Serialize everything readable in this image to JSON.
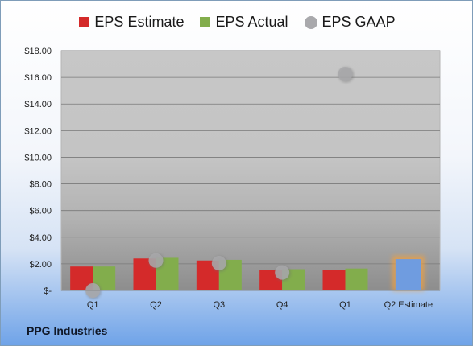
{
  "company": "PPG Industries",
  "colors": {
    "estimate": "#d42a2a",
    "actual": "#82ad4c",
    "gaap": "#a9a9ac",
    "highlight_bar": "#6f9ce0",
    "highlight_glow": "#f0a040"
  },
  "chart_data": {
    "type": "bar",
    "categories": [
      "Q1",
      "Q2",
      "Q3",
      "Q4",
      "Q1",
      "Q2 Estimate"
    ],
    "series": [
      {
        "name": "EPS Estimate",
        "type": "bar",
        "values": [
          1.8,
          2.4,
          2.25,
          1.55,
          1.55,
          null
        ]
      },
      {
        "name": "EPS Actual",
        "type": "bar",
        "values": [
          1.8,
          2.45,
          2.3,
          1.6,
          1.65,
          null
        ]
      },
      {
        "name": "EPS GAAP",
        "type": "scatter",
        "values": [
          0.0,
          2.25,
          2.05,
          1.35,
          16.25,
          null
        ]
      }
    ],
    "highlight": {
      "category": "Q2 Estimate",
      "value": 2.35
    },
    "ylim": [
      0,
      18
    ],
    "yticks": [
      0,
      2,
      4,
      6,
      8,
      10,
      12,
      14,
      16,
      18
    ],
    "ytick_labels": [
      "$-",
      "$2.00",
      "$4.00",
      "$6.00",
      "$8.00",
      "$10.00",
      "$12.00",
      "$14.00",
      "$16.00",
      "$18.00"
    ],
    "grid": true,
    "legend": "top"
  }
}
